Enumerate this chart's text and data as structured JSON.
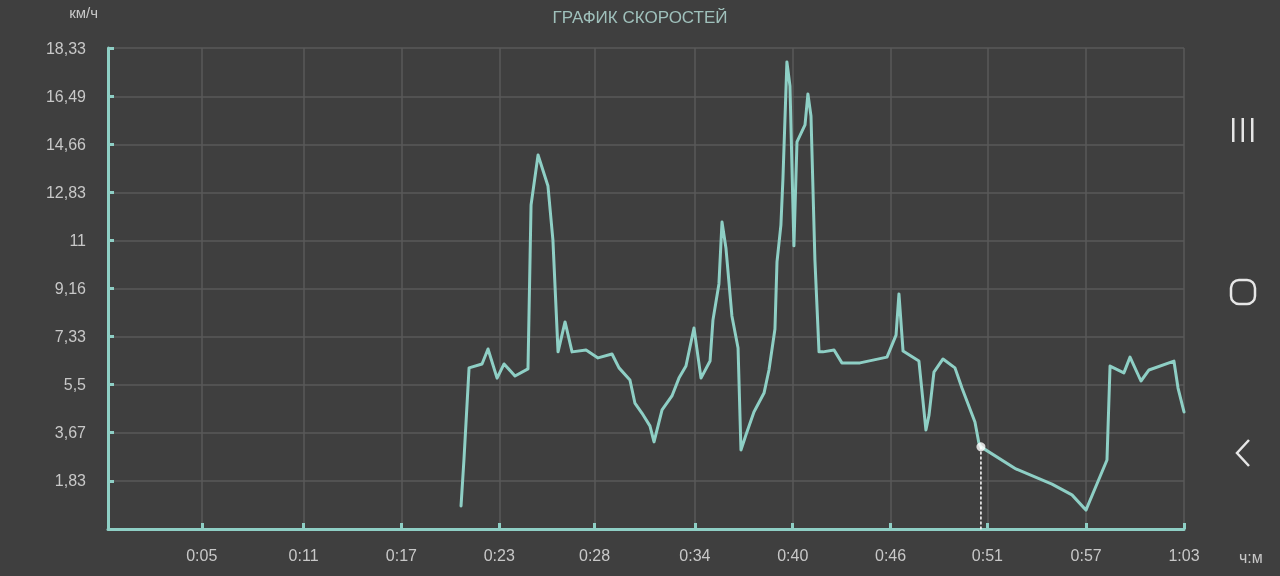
{
  "chart_data": {
    "type": "line",
    "title": "ГРАФИК СКОРОСТЕЙ",
    "xlabel": "ч:м",
    "ylabel": "км/ч",
    "xlim": [
      0,
      63
    ],
    "ylim": [
      0,
      18.33
    ],
    "xticks": [
      {
        "value": 5.49,
        "label": "0:05"
      },
      {
        "value": 11.45,
        "label": "0:11"
      },
      {
        "value": 17.18,
        "label": "0:17"
      },
      {
        "value": 22.91,
        "label": "0:23"
      },
      {
        "value": 28.49,
        "label": "0:28"
      },
      {
        "value": 34.36,
        "label": "0:34"
      },
      {
        "value": 40.09,
        "label": "0:40"
      },
      {
        "value": 45.82,
        "label": "0:46"
      },
      {
        "value": 51.49,
        "label": "0:51"
      },
      {
        "value": 57.27,
        "label": "0:57"
      },
      {
        "value": 63,
        "label": "1:03"
      }
    ],
    "yticks": [
      {
        "value": 1.83,
        "label": "1,83"
      },
      {
        "value": 3.67,
        "label": "3,67"
      },
      {
        "value": 5.5,
        "label": "5,5"
      },
      {
        "value": 7.33,
        "label": "7,33"
      },
      {
        "value": 9.16,
        "label": "9,16"
      },
      {
        "value": 11,
        "label": "11"
      },
      {
        "value": 12.83,
        "label": "12,83"
      },
      {
        "value": 14.66,
        "label": "14,66"
      },
      {
        "value": 16.49,
        "label": "16,49"
      },
      {
        "value": 18.33,
        "label": "18,33"
      }
    ],
    "grid": true,
    "series": [
      {
        "color": "#8ecfc5",
        "marker": "none",
        "x": [
          20.67,
          20.84,
          21.14,
          21.9,
          22.25,
          22.78,
          23.19,
          23.83,
          24.59,
          24.77,
          25.18,
          25.76,
          26.05,
          26.35,
          26.76,
          27.17,
          27.99,
          28.69,
          29.51,
          29.92,
          30.56,
          30.85,
          31.26,
          31.73,
          31.97,
          32.44,
          33.02,
          33.43,
          33.84,
          34.31,
          34.72,
          35.25,
          35.42,
          35.77,
          35.95,
          36.18,
          36.53,
          36.89,
          37.06,
          37.35,
          37.82,
          38.41,
          38.7,
          39.05,
          39.17,
          39.4,
          39.52,
          39.75,
          39.93,
          40.16,
          40.34,
          40.81,
          40.98,
          41.16,
          41.39,
          41.63,
          41.86,
          42.51,
          42.97,
          44.03,
          45.61,
          46.14,
          46.31,
          46.55,
          47.48,
          47.89,
          48.07,
          48.36,
          48.89,
          49.59,
          50.0,
          50.76,
          50.99,
          51.11,
          53.16,
          55.27,
          56.44,
          57.26,
          58.49,
          58.67,
          59.48,
          59.84,
          60.48,
          60.95,
          62.41,
          62.65,
          63.0
        ],
        "values": [
          0.88,
          2.63,
          6.14,
          6.29,
          6.86,
          5.75,
          6.29,
          5.83,
          6.1,
          12.35,
          14.25,
          13.07,
          11.01,
          6.75,
          7.89,
          6.75,
          6.82,
          6.52,
          6.67,
          6.14,
          5.68,
          4.8,
          4.42,
          3.93,
          3.32,
          4.54,
          5.07,
          5.75,
          6.21,
          7.66,
          5.75,
          6.4,
          7.96,
          9.34,
          11.7,
          10.71,
          8.12,
          6.9,
          3.01,
          3.58,
          4.46,
          5.18,
          6.06,
          7.62,
          10.18,
          11.59,
          13.38,
          17.8,
          16.88,
          10.79,
          14.75,
          15.4,
          16.58,
          15.74,
          10.25,
          6.75,
          6.75,
          6.82,
          6.33,
          6.33,
          6.55,
          7.39,
          8.96,
          6.78,
          6.4,
          3.77,
          4.34,
          5.98,
          6.48,
          6.14,
          5.37,
          4.08,
          3.28,
          3.13,
          2.29,
          1.71,
          1.3,
          0.72,
          2.63,
          6.21,
          5.95,
          6.55,
          5.64,
          6.06,
          6.4,
          5.37,
          4.46
        ]
      },
      {
        "type": "line",
        "color": "#ffffff",
        "marker": "none",
        "line_style": "dotted",
        "x": [
          51.11,
          51.11
        ],
        "values": [
          0,
          3.13
        ]
      },
      {
        "type": "scatter",
        "color": "#ffffff",
        "marker": "circle",
        "x": [
          51.11
        ],
        "values": [
          3.13
        ]
      }
    ]
  }
}
